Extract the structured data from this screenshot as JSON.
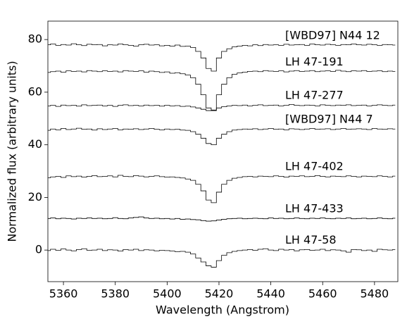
{
  "chart_data": {
    "type": "step",
    "xlabel": "Wavelength (Angstrom)",
    "ylabel": "Normalized flux (arbitrary units)",
    "xlim": [
      5354,
      5489
    ],
    "ylim": [
      -12,
      87
    ],
    "xticks": [
      5360,
      5380,
      5400,
      5420,
      5440,
      5460,
      5480
    ],
    "yticks": [
      0,
      20,
      40,
      60,
      80
    ],
    "x": [
      5354,
      5356,
      5358,
      5360,
      5362,
      5364,
      5366,
      5368,
      5370,
      5372,
      5374,
      5376,
      5378,
      5380,
      5382,
      5384,
      5386,
      5388,
      5390,
      5392,
      5394,
      5396,
      5398,
      5400,
      5402,
      5404,
      5406,
      5408,
      5410,
      5412,
      5414,
      5416,
      5418,
      5420,
      5422,
      5424,
      5426,
      5428,
      5430,
      5432,
      5434,
      5436,
      5438,
      5440,
      5442,
      5444,
      5446,
      5448,
      5450,
      5452,
      5454,
      5456,
      5458,
      5460,
      5462,
      5464,
      5466,
      5468,
      5470,
      5472,
      5474,
      5476,
      5478,
      5480,
      5482,
      5484,
      5486,
      5488
    ],
    "series": [
      {
        "name": "[WBD97] N44 12",
        "color": "#000000",
        "values": [
          78,
          78.3,
          77.8,
          78.1,
          77.9,
          78.4,
          78,
          77.7,
          78.2,
          78,
          78.1,
          77.6,
          78,
          77.9,
          78.3,
          78,
          77.8,
          77.5,
          78,
          78.2,
          77.9,
          78,
          77.6,
          77.8,
          77.5,
          77.9,
          77.4,
          77.5,
          77,
          75.5,
          73,
          69,
          68,
          73,
          75.5,
          76.5,
          77.2,
          77.5,
          77.8,
          77.6,
          78,
          77.7,
          78.1,
          77.9,
          78,
          77.8,
          78.2,
          77.9,
          78,
          78.1,
          77.8,
          78.3,
          78,
          77.9,
          78.2,
          78,
          77.8,
          78.1,
          78,
          78.3,
          78,
          77.9,
          78.2,
          78,
          77.8,
          78.1,
          78,
          77.9
        ]
      },
      {
        "name": "LH 47-191",
        "color": "#000000",
        "values": [
          67.5,
          67.8,
          68,
          67.6,
          68.1,
          67.9,
          68,
          67.7,
          68.2,
          68,
          67.8,
          68.1,
          67.9,
          68,
          67.7,
          68.2,
          68,
          67.9,
          68.1,
          67.6,
          68,
          67.8,
          67.5,
          67.7,
          67.2,
          67.4,
          67,
          66.5,
          65.5,
          63,
          59,
          54,
          53,
          59,
          63,
          65.5,
          66.8,
          67.3,
          67.6,
          67.9,
          68,
          67.8,
          68.2,
          68,
          67.9,
          68.1,
          67.7,
          68,
          68.2,
          67.9,
          68,
          68.2,
          67.8,
          68,
          68.1,
          67.9,
          68.3,
          68,
          67.8,
          68.1,
          68,
          68.2,
          67.9,
          68,
          68.1,
          67.8,
          68,
          67.9
        ]
      },
      {
        "name": "LH 47-277",
        "color": "#000000",
        "values": [
          54.8,
          55,
          54.6,
          55.1,
          54.9,
          55,
          54.7,
          55.2,
          54.9,
          55,
          55.1,
          54.8,
          55,
          54.6,
          55,
          55.2,
          54.9,
          55,
          54.8,
          55.1,
          54.9,
          55,
          54.7,
          55,
          54.8,
          54.9,
          54.6,
          54.7,
          54.4,
          54,
          53.5,
          53,
          53.2,
          54,
          54.5,
          54.8,
          55,
          54.9,
          55.1,
          54.8,
          55,
          55.2,
          54.9,
          55,
          55.1,
          54.8,
          55,
          55.3,
          55,
          54.9,
          55.1,
          55,
          54.8,
          55.2,
          55,
          54.9,
          55.1,
          55,
          55.2,
          54.9,
          55,
          55.1,
          54.8,
          55,
          55.2,
          55,
          54.9,
          55.1
        ]
      },
      {
        "name": "[WBD97] N44 7",
        "color": "#000000",
        "values": [
          45.5,
          46,
          45.7,
          46.2,
          45.8,
          46,
          46.3,
          45.9,
          46,
          45.6,
          46.1,
          45.8,
          46,
          46.2,
          45.7,
          46,
          45.9,
          46.1,
          45.8,
          46,
          46.2,
          45.9,
          45.7,
          46,
          45.8,
          45.9,
          45.6,
          45.5,
          45,
          44,
          42.5,
          40.5,
          40,
          42.5,
          44,
          45,
          45.6,
          45.8,
          46,
          45.9,
          46.1,
          45.8,
          46,
          46.2,
          45.9,
          46,
          45.7,
          46.1,
          46,
          45.8,
          46,
          46.2,
          45.9,
          46,
          46.1,
          45.8,
          46,
          46.2,
          45.9,
          46,
          46.1,
          46,
          45.8,
          46.2,
          46,
          45.9,
          46.1,
          46
        ]
      },
      {
        "name": "LH 47-402",
        "color": "#000000",
        "values": [
          27.5,
          27.8,
          28,
          27.6,
          28.2,
          27.9,
          28.1,
          27.7,
          28,
          28.3,
          27.9,
          28,
          28.2,
          27.8,
          28.4,
          28,
          27.9,
          28.3,
          28.1,
          27.8,
          28,
          28.2,
          27.9,
          27.7,
          27.8,
          27.6,
          27.4,
          27,
          26.5,
          25,
          22.5,
          19,
          18,
          22,
          25,
          26.5,
          27.3,
          27.6,
          27.9,
          28,
          27.8,
          28.1,
          28,
          27.9,
          28.2,
          28,
          27.7,
          28.1,
          28,
          28.2,
          27.9,
          28,
          28.3,
          28,
          27.8,
          28.1,
          28,
          27.9,
          28.2,
          28,
          27.8,
          28.1,
          28,
          27.9,
          28.2,
          28,
          27.8,
          28.1
        ]
      },
      {
        "name": "LH 47-433",
        "color": "#000000",
        "values": [
          12,
          12.2,
          11.9,
          12.1,
          12,
          11.8,
          12.1,
          12,
          12.2,
          12,
          12.1,
          11.9,
          12,
          12.3,
          12,
          11.9,
          12.2,
          12.4,
          12.6,
          12.2,
          12,
          12.1,
          11.9,
          12,
          11.8,
          12,
          11.7,
          11.8,
          11.6,
          11.5,
          11.2,
          11,
          11.1,
          11.4,
          11.7,
          11.9,
          12,
          12.1,
          11.9,
          12,
          12.1,
          12,
          11.9,
          12.2,
          12,
          12.1,
          11.9,
          12,
          12.2,
          12,
          11.9,
          12.1,
          12,
          12.2,
          12,
          11.9,
          12.1,
          12,
          12.2,
          11.9,
          12,
          12.1,
          11.9,
          12,
          12.2,
          12,
          11.9,
          12.1
        ]
      },
      {
        "name": "LH 47-58",
        "color": "#000000",
        "values": [
          -0.2,
          0.3,
          -0.1,
          0.4,
          0,
          -0.3,
          0.2,
          0.5,
          -0.1,
          0,
          0.3,
          -0.2,
          0.1,
          0,
          -0.4,
          0.2,
          0,
          0.3,
          -0.2,
          0.1,
          0,
          -0.3,
          -0.1,
          -0.2,
          -0.4,
          -0.6,
          -0.5,
          -0.8,
          -1.5,
          -3,
          -4.5,
          -6,
          -6.5,
          -4,
          -2,
          -1,
          -0.5,
          -0.2,
          0,
          0.2,
          -0.1,
          0.3,
          0.5,
          0,
          -0.2,
          0.3,
          0,
          0.2,
          -0.3,
          0.1,
          0.2,
          -0.1,
          0,
          0.3,
          -0.2,
          0.1,
          0,
          -0.3,
          -0.8,
          0.2,
          0.1,
          -0.2,
          0,
          -0.5,
          0.3,
          0.1,
          0,
          0.2
        ]
      }
    ]
  }
}
